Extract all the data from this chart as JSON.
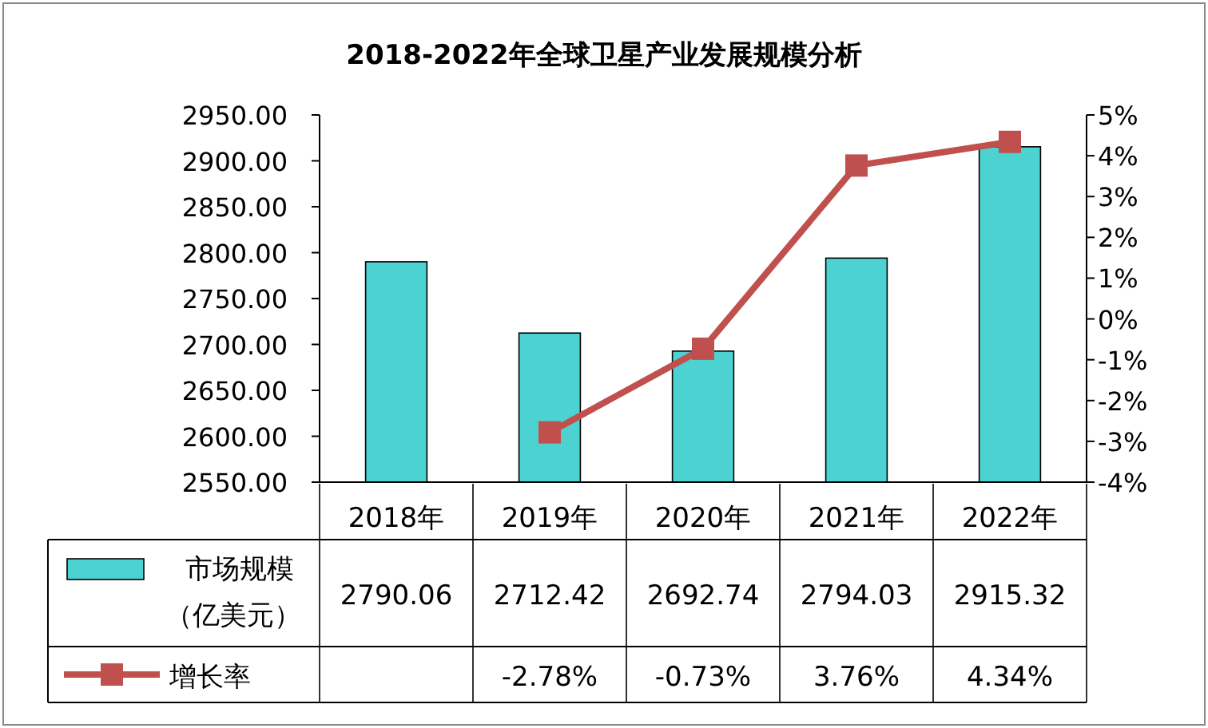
{
  "chart_data": {
    "type": "bar",
    "title": "2018-2022年全球卫星产业发展规模分析",
    "categories": [
      "2018年",
      "2019年",
      "2020年",
      "2021年",
      "2022年"
    ],
    "series": [
      {
        "name": "市场规模（亿美元）",
        "color": "#4dd2d2",
        "values": [
          2790.06,
          2712.42,
          2692.74,
          2794.03,
          2915.32
        ],
        "value_labels": [
          "2790.06",
          "2712.42",
          "2692.74",
          "2794.03",
          "2915.32"
        ]
      },
      {
        "name": "增长率",
        "type": "line",
        "axis": "y2",
        "color": "#c0504d",
        "marker": "square",
        "values": [
          null,
          -2.78,
          -0.73,
          3.76,
          4.34
        ],
        "value_labels": [
          null,
          "-2.78%",
          "-0.73%",
          "3.76%",
          "4.34%"
        ]
      }
    ],
    "ylim": [
      2550,
      2950
    ],
    "yticks": [
      {
        "value": 2550,
        "label": "2550.00"
      },
      {
        "value": 2600,
        "label": "2600.00"
      },
      {
        "value": 2650,
        "label": "2650.00"
      },
      {
        "value": 2700,
        "label": "2700.00"
      },
      {
        "value": 2750,
        "label": "2750.00"
      },
      {
        "value": 2800,
        "label": "2800.00"
      },
      {
        "value": 2850,
        "label": "2850.00"
      },
      {
        "value": 2900,
        "label": "2900.00"
      },
      {
        "value": 2950,
        "label": "2950.00"
      }
    ],
    "y2lim": [
      -4,
      5
    ],
    "y2ticks": [
      {
        "value": -4,
        "label": "-4%"
      },
      {
        "value": -3,
        "label": "-3%"
      },
      {
        "value": -2,
        "label": "-2%"
      },
      {
        "value": -1,
        "label": "-1%"
      },
      {
        "value": 0,
        "label": "0%"
      },
      {
        "value": 1,
        "label": "1%"
      },
      {
        "value": 2,
        "label": "2%"
      },
      {
        "value": 3,
        "label": "3%"
      },
      {
        "value": 4,
        "label": "4%"
      },
      {
        "value": 5,
        "label": "5%"
      }
    ],
    "legend": "bottom"
  }
}
